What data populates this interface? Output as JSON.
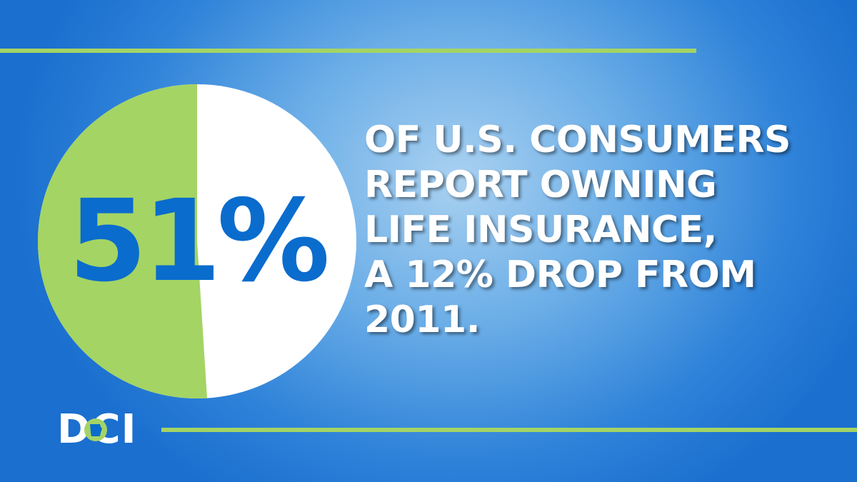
{
  "stat": {
    "value": "51%",
    "fraction": 0.51
  },
  "headline": {
    "lines": [
      "OF U.S. CONSUMERS",
      "REPORT OWNING",
      "LIFE INSURANCE,",
      "A 12% DROP FROM",
      "2011."
    ]
  },
  "logo": {
    "text": "DCI",
    "icon": "missouri-state-outline-icon"
  },
  "colors": {
    "green": "#a4d464",
    "white": "#ffffff",
    "stat_blue": "#0a6ccd",
    "background_blue": "#1b6fcf"
  }
}
